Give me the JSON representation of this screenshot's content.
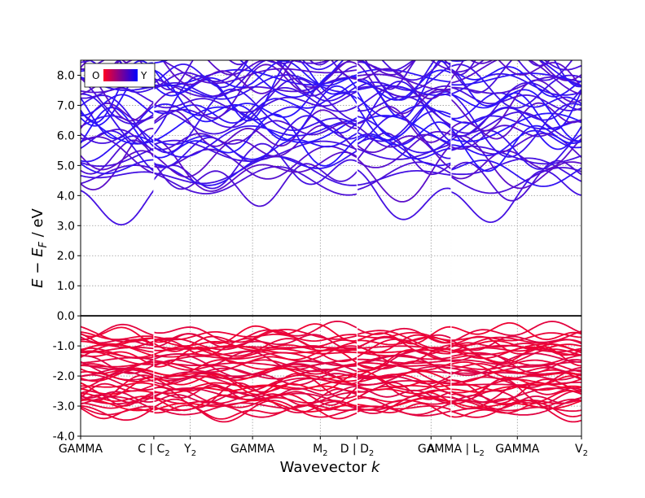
{
  "chart_data": {
    "type": "line",
    "title": "",
    "xlabel": "Wavevector k",
    "ylabel": "E − E_F / eV",
    "ylim": [
      -4.0,
      8.5
    ],
    "yticks": [
      -4.0,
      -3.0,
      -2.0,
      -1.0,
      0.0,
      1.0,
      2.0,
      3.0,
      4.0,
      5.0,
      6.0,
      7.0,
      8.0
    ],
    "ytick_labels": [
      "-4.0",
      "-3.0",
      "-2.0",
      "-1.0",
      "0.0",
      "1.0",
      "2.0",
      "3.0",
      "4.0",
      "5.0",
      "6.0",
      "7.0",
      "8.0"
    ],
    "grid": true,
    "fermi_level": 0.0,
    "path_segments": [
      {
        "from": "GAMMA",
        "to": "C",
        "length": 2.01
      },
      {
        "from": "C_2",
        "to": "Y_2",
        "length": 1.0
      },
      {
        "from": "Y_2",
        "to": "GAMMA",
        "length": 1.71
      },
      {
        "from": "GAMMA",
        "to": "M_2",
        "length": 1.86
      },
      {
        "from": "M_2",
        "to": "D",
        "length": 1.01
      },
      {
        "from": "D_2",
        "to": "A",
        "length": 2.03
      },
      {
        "from": "A",
        "to": "GAMMA",
        "length": 0.55
      },
      {
        "from": "L_2",
        "to": "GAMMA",
        "length": 1.82
      },
      {
        "from": "GAMMA",
        "to": "V_2",
        "length": 1.76
      }
    ],
    "xticks": [
      {
        "label_main": "GAMMA",
        "sub": "",
        "position": 0.0
      },
      {
        "label_main": "C | C",
        "sub": "2",
        "position": 2.01
      },
      {
        "label_main": "Y",
        "sub": "2",
        "position": 3.01
      },
      {
        "label_main": "GAMMA",
        "sub": "",
        "position": 4.72
      },
      {
        "label_main": "M",
        "sub": "2",
        "position": 6.58
      },
      {
        "label_main": "D | D",
        "sub": "2",
        "position": 7.59
      },
      {
        "label_main": "A",
        "sub": "",
        "position": 9.62
      },
      {
        "label_main": "GAMMA | L",
        "sub": "2",
        "position": 10.17
      },
      {
        "label_main": "GAMMA",
        "sub": "",
        "position": 11.99
      },
      {
        "label_main": "V",
        "sub": "2",
        "position": 13.75
      }
    ],
    "xtick_labels_display": [
      "GAMMA",
      "C | C2",
      "Y2",
      "GAMMA",
      "M2",
      "D | D2",
      "A",
      "GAMMA | L2",
      "GAMMA",
      "V2"
    ],
    "discontinuities": [
      2.01,
      7.59,
      10.17
    ],
    "valence_band": {
      "top": -0.48,
      "bottom": -3.3,
      "count": 44
    },
    "conduction_band": {
      "min": 4.0,
      "max": 8.5,
      "count": 40
    },
    "color_projection": {
      "low_label": "O",
      "high_label": "Y",
      "low_color": "#ff0022",
      "high_color": "#0000ff"
    },
    "legend": {
      "position": "top-left",
      "labels": [
        "O",
        "Y"
      ]
    },
    "x_range": [
      0.0,
      13.75
    ]
  }
}
